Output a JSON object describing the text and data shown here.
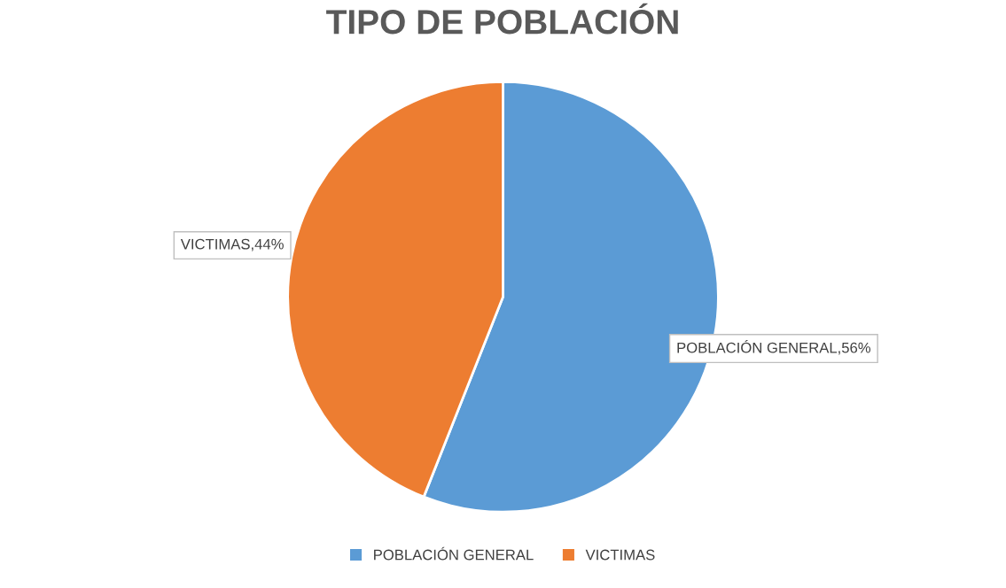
{
  "chart_data": {
    "type": "pie",
    "title": "TIPO DE POBLACIÓN",
    "categories": [
      "POBLACIÓN GENERAL",
      "VICTIMAS"
    ],
    "values": [
      56,
      44
    ],
    "colors": [
      "#5b9bd5",
      "#ed7d31"
    ],
    "value_labels": [
      "POBLACIÓN GENERAL,56%",
      "VICTIMAS,44%"
    ],
    "legend": "bottom"
  }
}
